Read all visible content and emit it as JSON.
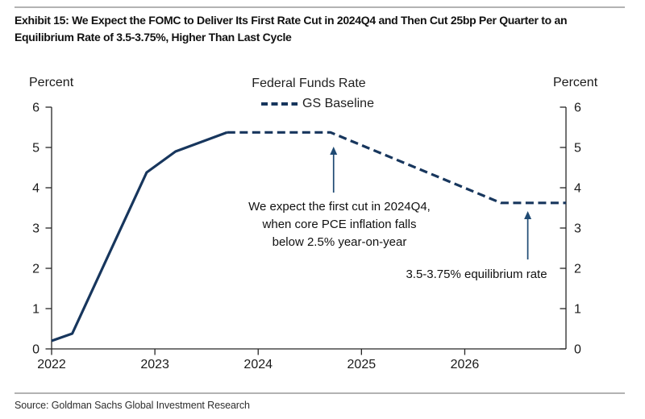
{
  "header": {
    "title_lines": [
      "Exhibit 15: We Expect the FOMC to Deliver Its First Rate Cut in 2024Q4 and Then Cut 25bp Per Quarter to an",
      "Equilibrium Rate of 3.5-3.75%, Higher Than Last Cycle"
    ]
  },
  "chart": {
    "title": "Federal Funds Rate",
    "legend_label": "GS Baseline",
    "left_axis_label": "Percent",
    "right_axis_label": "Percent"
  },
  "footer": {
    "source": "Source: Goldman Sachs Global Investment Research"
  },
  "colors": {
    "line_navy": "#17365d",
    "arrow_navy": "#1f4a73",
    "axis": "#262626",
    "tick_text": "#1a1a1a",
    "rule_gray": "#b3b3b3"
  },
  "chart_data": {
    "type": "line",
    "title": "Federal Funds Rate",
    "ylabel": "Percent",
    "ylabel_right": "Percent",
    "ylim": [
      0,
      6
    ],
    "yticks": [
      0,
      1,
      2,
      3,
      4,
      5,
      6
    ],
    "xlim": [
      2022,
      2026.98
    ],
    "xticks": [
      2022,
      2023,
      2024,
      2025,
      2026
    ],
    "grid": false,
    "legend_position": "top-center",
    "series": [
      {
        "name": "Federal Funds Rate (actual)",
        "style": "solid",
        "color": "#17365d",
        "points": [
          [
            2022.0,
            0.2
          ],
          [
            2022.2,
            0.38
          ],
          [
            2022.92,
            4.38
          ],
          [
            2023.2,
            4.9
          ],
          [
            2023.7,
            5.375
          ]
        ]
      },
      {
        "name": "GS Baseline",
        "style": "dashed",
        "color": "#17365d",
        "points": [
          [
            2023.7,
            5.375
          ],
          [
            2024.7,
            5.375
          ],
          [
            2026.35,
            3.625
          ],
          [
            2026.98,
            3.625
          ]
        ]
      }
    ],
    "annotations": [
      {
        "lines": [
          "We expect the first cut in 2024Q4,",
          "when core PCE inflation falls",
          "below 2.5% year-on-year"
        ],
        "arrow": {
          "x": 2024.73,
          "y_from": 3.88,
          "y_to": 5.02
        }
      },
      {
        "lines": [
          "3.5-3.75% equilibrium rate"
        ],
        "arrow": {
          "x": 2026.61,
          "y_from": 2.22,
          "y_to": 3.42
        }
      }
    ]
  }
}
